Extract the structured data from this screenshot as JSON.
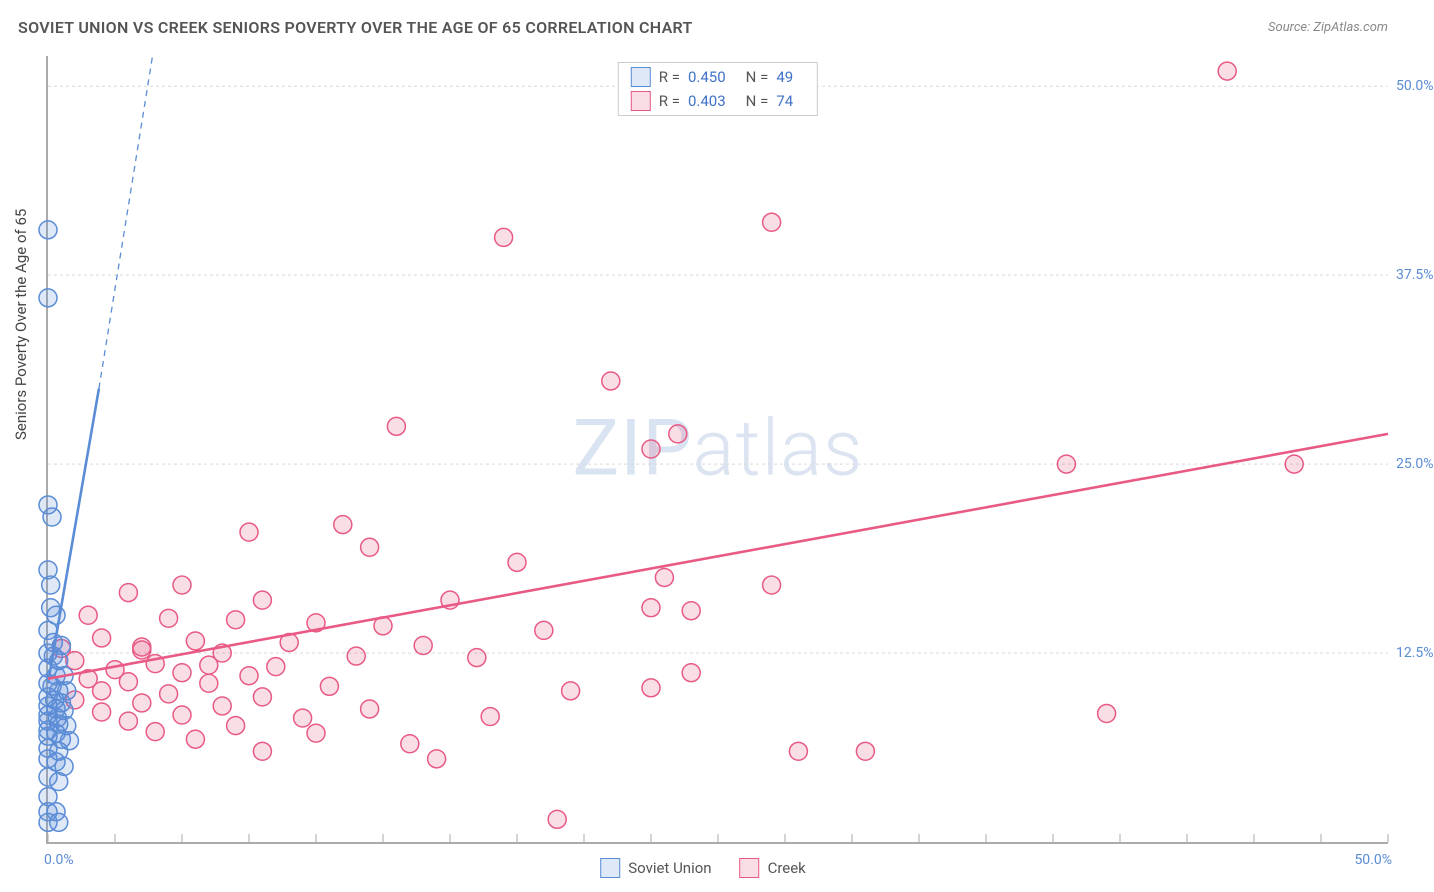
{
  "title": "SOVIET UNION VS CREEK SENIORS POVERTY OVER THE AGE OF 65 CORRELATION CHART",
  "source": "Source: ZipAtlas.com",
  "y_axis_label": "Seniors Poverty Over the Age of 65",
  "watermark_bold": "ZIP",
  "watermark_thin": "atlas",
  "chart": {
    "type": "scatter",
    "xlim": [
      0,
      50
    ],
    "ylim": [
      0,
      52
    ],
    "x_tick_start": "0.0%",
    "x_tick_end": "50.0%",
    "y_ticks": [
      {
        "v": 12.5,
        "label": "12.5%"
      },
      {
        "v": 25.0,
        "label": "25.0%"
      },
      {
        "v": 37.5,
        "label": "37.5%"
      },
      {
        "v": 50.0,
        "label": "50.0%"
      }
    ],
    "x_minor_step": 2.5,
    "background_color": "#ffffff",
    "grid_color": "#d9d9d9",
    "axis_tick_color": "#aaaaaa",
    "marker_radius": 9,
    "marker_stroke_width": 1.5,
    "marker_fill_opacity": 0.2,
    "trend_line_width": 2.6,
    "series": [
      {
        "name": "Soviet Union",
        "color": "#5b8cd6",
        "R": "0.450",
        "N": "49",
        "trend": {
          "x1": 0,
          "y1": 10.5,
          "x2": 1.9,
          "y2": 30.0,
          "dash_x2": 3.9,
          "dash_y2": 52.0
        },
        "points": [
          [
            0.0,
            40.5
          ],
          [
            0.0,
            36.0
          ],
          [
            0.0,
            22.3
          ],
          [
            0.15,
            21.5
          ],
          [
            0.0,
            18.0
          ],
          [
            0.1,
            17.0
          ],
          [
            0.1,
            15.5
          ],
          [
            0.3,
            15.0
          ],
          [
            0.0,
            14.0
          ],
          [
            0.2,
            13.2
          ],
          [
            0.5,
            13.0
          ],
          [
            0.0,
            12.5
          ],
          [
            0.2,
            12.3
          ],
          [
            0.4,
            12.0
          ],
          [
            0.0,
            11.5
          ],
          [
            0.3,
            11.0
          ],
          [
            0.6,
            11.0
          ],
          [
            0.0,
            10.5
          ],
          [
            0.15,
            10.3
          ],
          [
            0.4,
            10.0
          ],
          [
            0.7,
            10.0
          ],
          [
            0.0,
            9.6
          ],
          [
            0.25,
            9.4
          ],
          [
            0.5,
            9.2
          ],
          [
            0.0,
            9.0
          ],
          [
            0.3,
            8.8
          ],
          [
            0.6,
            8.7
          ],
          [
            0.0,
            8.4
          ],
          [
            0.35,
            8.2
          ],
          [
            0.0,
            8.0
          ],
          [
            0.4,
            7.8
          ],
          [
            0.7,
            7.7
          ],
          [
            0.0,
            7.4
          ],
          [
            0.3,
            7.2
          ],
          [
            0.0,
            7.0
          ],
          [
            0.5,
            6.8
          ],
          [
            0.8,
            6.7
          ],
          [
            0.0,
            6.2
          ],
          [
            0.4,
            6.0
          ],
          [
            0.0,
            5.5
          ],
          [
            0.3,
            5.3
          ],
          [
            0.6,
            5.0
          ],
          [
            0.0,
            4.3
          ],
          [
            0.4,
            4.0
          ],
          [
            0.0,
            3.0
          ],
          [
            0.0,
            2.0
          ],
          [
            0.3,
            2.0
          ],
          [
            0.0,
            1.3
          ],
          [
            0.4,
            1.3
          ]
        ]
      },
      {
        "name": "Creek",
        "color": "#e85a84",
        "R": "0.403",
        "N": "74",
        "trend": {
          "x1": 0,
          "y1": 10.8,
          "x2": 50.0,
          "y2": 27.0
        },
        "points": [
          [
            44.0,
            51.0
          ],
          [
            27.0,
            41.0
          ],
          [
            17.0,
            40.0
          ],
          [
            21.0,
            30.5
          ],
          [
            13.0,
            27.5
          ],
          [
            23.5,
            27.0
          ],
          [
            22.5,
            26.0
          ],
          [
            38.0,
            25.0
          ],
          [
            46.5,
            25.0
          ],
          [
            11.0,
            21.0
          ],
          [
            7.5,
            20.5
          ],
          [
            12.0,
            19.5
          ],
          [
            17.5,
            18.5
          ],
          [
            23.0,
            17.5
          ],
          [
            5.0,
            17.0
          ],
          [
            27.0,
            17.0
          ],
          [
            3.0,
            16.5
          ],
          [
            8.0,
            16.0
          ],
          [
            15.0,
            16.0
          ],
          [
            22.5,
            15.5
          ],
          [
            24.0,
            15.3
          ],
          [
            1.5,
            15.0
          ],
          [
            4.5,
            14.8
          ],
          [
            7.0,
            14.7
          ],
          [
            10.0,
            14.5
          ],
          [
            12.5,
            14.3
          ],
          [
            18.5,
            14.0
          ],
          [
            2.0,
            13.5
          ],
          [
            5.5,
            13.3
          ],
          [
            9.0,
            13.2
          ],
          [
            14.0,
            13.0
          ],
          [
            0.5,
            12.8
          ],
          [
            3.5,
            12.7
          ],
          [
            6.5,
            12.5
          ],
          [
            11.5,
            12.3
          ],
          [
            16.0,
            12.2
          ],
          [
            1.0,
            12.0
          ],
          [
            4.0,
            11.8
          ],
          [
            8.5,
            11.6
          ],
          [
            2.5,
            11.4
          ],
          [
            5.0,
            11.2
          ],
          [
            24.0,
            11.2
          ],
          [
            7.5,
            11.0
          ],
          [
            1.5,
            10.8
          ],
          [
            3.0,
            10.6
          ],
          [
            6.0,
            10.5
          ],
          [
            10.5,
            10.3
          ],
          [
            19.5,
            10.0
          ],
          [
            2.0,
            10.0
          ],
          [
            22.5,
            10.2
          ],
          [
            4.5,
            9.8
          ],
          [
            8.0,
            9.6
          ],
          [
            1.0,
            9.4
          ],
          [
            3.5,
            9.2
          ],
          [
            6.5,
            9.0
          ],
          [
            12.0,
            8.8
          ],
          [
            2.0,
            8.6
          ],
          [
            5.0,
            8.4
          ],
          [
            9.5,
            8.2
          ],
          [
            16.5,
            8.3
          ],
          [
            3.0,
            8.0
          ],
          [
            7.0,
            7.7
          ],
          [
            39.5,
            8.5
          ],
          [
            4.0,
            7.3
          ],
          [
            10.0,
            7.2
          ],
          [
            5.5,
            6.8
          ],
          [
            13.5,
            6.5
          ],
          [
            8.0,
            6.0
          ],
          [
            28.0,
            6.0
          ],
          [
            30.5,
            6.0
          ],
          [
            14.5,
            5.5
          ],
          [
            19.0,
            1.5
          ],
          [
            3.5,
            12.9
          ],
          [
            6.0,
            11.7
          ]
        ]
      }
    ]
  },
  "bottom_legend": [
    {
      "name": "Soviet Union",
      "color": "#5b8cd6"
    },
    {
      "name": "Creek",
      "color": "#e85a84"
    }
  ]
}
